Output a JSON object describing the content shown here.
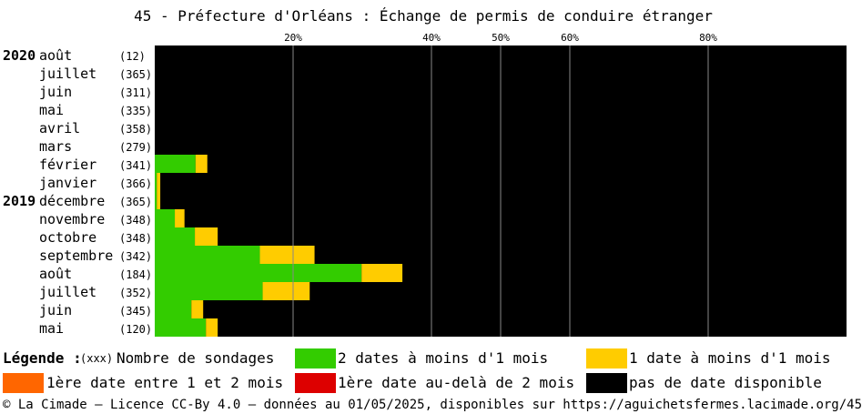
{
  "title": "45 - Préfecture d'Orléans : Échange de permis de conduire étranger",
  "chart_data": {
    "type": "bar",
    "stacked": true,
    "orientation": "horizontal",
    "xlim": [
      0,
      100
    ],
    "x_ticks": [
      {
        "value": 20,
        "label": "20%"
      },
      {
        "value": 40,
        "label": "40%"
      },
      {
        "value": 50,
        "label": "50%"
      },
      {
        "value": 60,
        "label": "60%"
      },
      {
        "value": 80,
        "label": "80%"
      }
    ],
    "grid": true,
    "series_colors": {
      "two_dates": "#33cc00",
      "one_date": "#ffcc00",
      "first_1_2_months": "#ff6600",
      "first_beyond_2_months": "#dd0000",
      "no_date": "#000000"
    },
    "rows": [
      {
        "year": "2020",
        "month": "août",
        "count": "(12)",
        "two_dates": 0,
        "one_date": 0,
        "first_1_2_months": 0,
        "first_beyond_2_months": 0
      },
      {
        "year": "",
        "month": "juillet",
        "count": "(365)",
        "two_dates": 0,
        "one_date": 0,
        "first_1_2_months": 0,
        "first_beyond_2_months": 0
      },
      {
        "year": "",
        "month": "juin",
        "count": "(311)",
        "two_dates": 0,
        "one_date": 0,
        "first_1_2_months": 0,
        "first_beyond_2_months": 0
      },
      {
        "year": "",
        "month": "mai",
        "count": "(335)",
        "two_dates": 0,
        "one_date": 0,
        "first_1_2_months": 0,
        "first_beyond_2_months": 0
      },
      {
        "year": "",
        "month": "avril",
        "count": "(358)",
        "two_dates": 0,
        "one_date": 0,
        "first_1_2_months": 0,
        "first_beyond_2_months": 0
      },
      {
        "year": "",
        "month": "mars",
        "count": "(279)",
        "two_dates": 0,
        "one_date": 0,
        "first_1_2_months": 0,
        "first_beyond_2_months": 0
      },
      {
        "year": "",
        "month": "février",
        "count": "(341)",
        "two_dates": 5.9,
        "one_date": 1.7,
        "first_1_2_months": 0,
        "first_beyond_2_months": 0
      },
      {
        "year": "",
        "month": "janvier",
        "count": "(366)",
        "two_dates": 0.3,
        "one_date": 0.5,
        "first_1_2_months": 0,
        "first_beyond_2_months": 0
      },
      {
        "year": "2019",
        "month": "décembre",
        "count": "(365)",
        "two_dates": 0.3,
        "one_date": 0.5,
        "first_1_2_months": 0,
        "first_beyond_2_months": 0
      },
      {
        "year": "",
        "month": "novembre",
        "count": "(348)",
        "two_dates": 2.9,
        "one_date": 1.4,
        "first_1_2_months": 0,
        "first_beyond_2_months": 0
      },
      {
        "year": "",
        "month": "octobre",
        "count": "(348)",
        "two_dates": 5.8,
        "one_date": 3.3,
        "first_1_2_months": 0,
        "first_beyond_2_months": 0
      },
      {
        "year": "",
        "month": "septembre",
        "count": "(342)",
        "two_dates": 15.2,
        "one_date": 7.9,
        "first_1_2_months": 0,
        "first_beyond_2_months": 0
      },
      {
        "year": "",
        "month": "août",
        "count": "(184)",
        "two_dates": 29.9,
        "one_date": 5.9,
        "first_1_2_months": 0,
        "first_beyond_2_months": 0
      },
      {
        "year": "",
        "month": "juillet",
        "count": "(352)",
        "two_dates": 15.6,
        "one_date": 6.8,
        "first_1_2_months": 0,
        "first_beyond_2_months": 0
      },
      {
        "year": "",
        "month": "juin",
        "count": "(345)",
        "two_dates": 5.3,
        "one_date": 1.7,
        "first_1_2_months": 0,
        "first_beyond_2_months": 0
      },
      {
        "year": "",
        "month": "mai",
        "count": "(120)",
        "two_dates": 7.4,
        "one_date": 1.7,
        "first_1_2_months": 0,
        "first_beyond_2_months": 0
      }
    ]
  },
  "legend": {
    "heading": "Légende :",
    "count_code": "(xxx)",
    "count_text": "Nombre de sondages",
    "items": [
      {
        "key": "two_dates",
        "label": "2 dates à moins d'1 mois",
        "color": "#33cc00"
      },
      {
        "key": "one_date",
        "label": "1 date à moins d'1 mois",
        "color": "#ffcc00"
      },
      {
        "key": "first_1_2_months",
        "label": "1ère date entre 1 et 2 mois",
        "color": "#ff6600"
      },
      {
        "key": "first_beyond_2_months",
        "label": "1ère date au-delà de 2 mois",
        "color": "#dd0000"
      },
      {
        "key": "no_date",
        "label": "pas de date disponible",
        "color": "#000000"
      }
    ]
  },
  "footer": "© La Cimade — Licence CC-By 4.0 — données au 01/05/2025, disponibles sur https://aguichetsfermes.lacimade.org/45"
}
